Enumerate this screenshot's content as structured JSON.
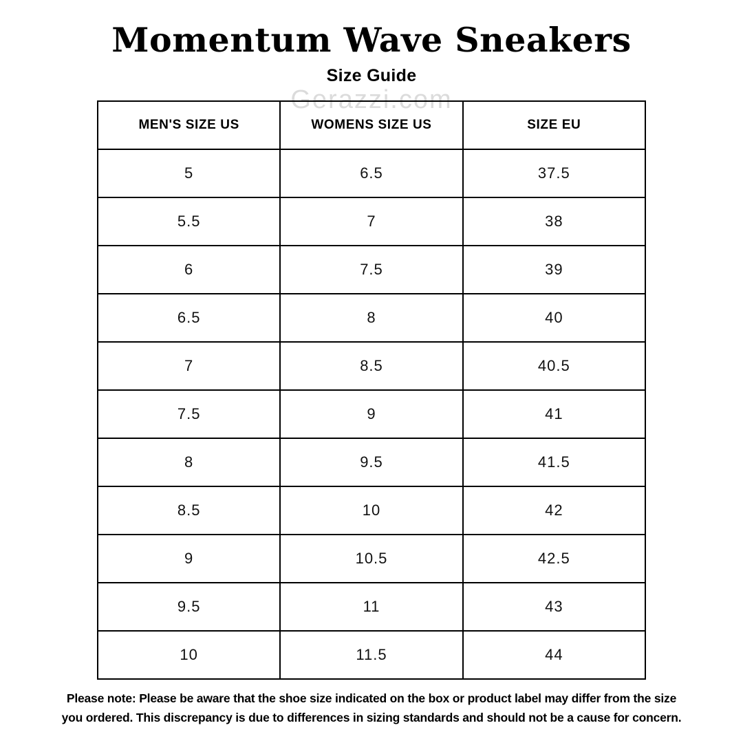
{
  "page": {
    "title": "Momentum Wave Sneakers",
    "subtitle": "Size Guide",
    "watermark": "Gerazzi.com"
  },
  "table": {
    "columns": [
      "MEN'S SIZE US",
      "WOMENS SIZE US",
      "SIZE EU"
    ],
    "rows": [
      [
        "5",
        "6.5",
        "37.5"
      ],
      [
        "5.5",
        "7",
        "38"
      ],
      [
        "6",
        "7.5",
        "39"
      ],
      [
        "6.5",
        "8",
        "40"
      ],
      [
        "7",
        "8.5",
        "40.5"
      ],
      [
        "7.5",
        "9",
        "41"
      ],
      [
        "8",
        "9.5",
        "41.5"
      ],
      [
        "8.5",
        "10",
        "42"
      ],
      [
        "9",
        "10.5",
        "42.5"
      ],
      [
        "9.5",
        "11",
        "43"
      ],
      [
        "10",
        "11.5",
        "44"
      ]
    ]
  },
  "note_lines": [
    "Please note: Please be aware that the shoe size indicated on the box or product label may differ from the size",
    "you ordered. This discrepancy is due to differences in sizing standards and should not be a cause for concern."
  ],
  "colors": {
    "background": "#ffffff",
    "text": "#000000",
    "border": "#000000",
    "watermark": "#d6d6d6"
  }
}
